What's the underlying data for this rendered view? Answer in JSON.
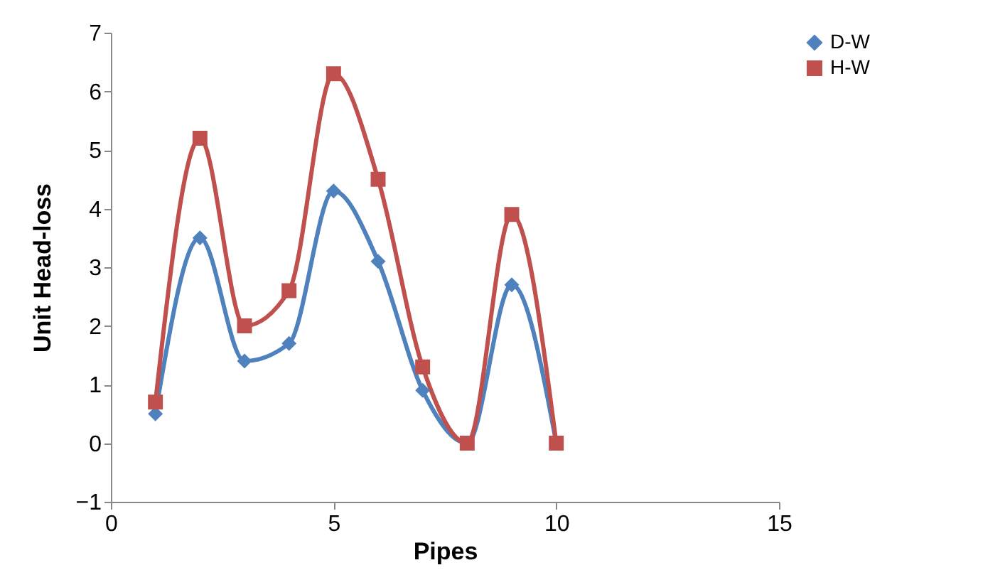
{
  "chart_data": {
    "type": "line",
    "xlabel": "Pipes",
    "ylabel": "Unit Head-loss",
    "x": [
      1,
      2,
      3,
      4,
      5,
      6,
      7,
      8,
      9,
      10
    ],
    "series": [
      {
        "name": "D-W",
        "color": "#4f81bd",
        "marker": "diamond",
        "values": [
          0.5,
          3.5,
          1.4,
          1.7,
          4.3,
          3.1,
          0.9,
          0,
          2.7,
          0
        ]
      },
      {
        "name": "H-W",
        "color": "#c0504d",
        "marker": "square",
        "values": [
          0.7,
          5.2,
          2.0,
          2.6,
          6.3,
          4.5,
          1.3,
          0,
          3.9,
          0
        ]
      }
    ],
    "xlim": [
      0,
      15
    ],
    "xticks": [
      0,
      5,
      10,
      15
    ],
    "ylim": [
      -1,
      7
    ],
    "yticks": [
      -1,
      0,
      1,
      2,
      3,
      4,
      5,
      6,
      7
    ],
    "grid": false,
    "legend": "right"
  }
}
